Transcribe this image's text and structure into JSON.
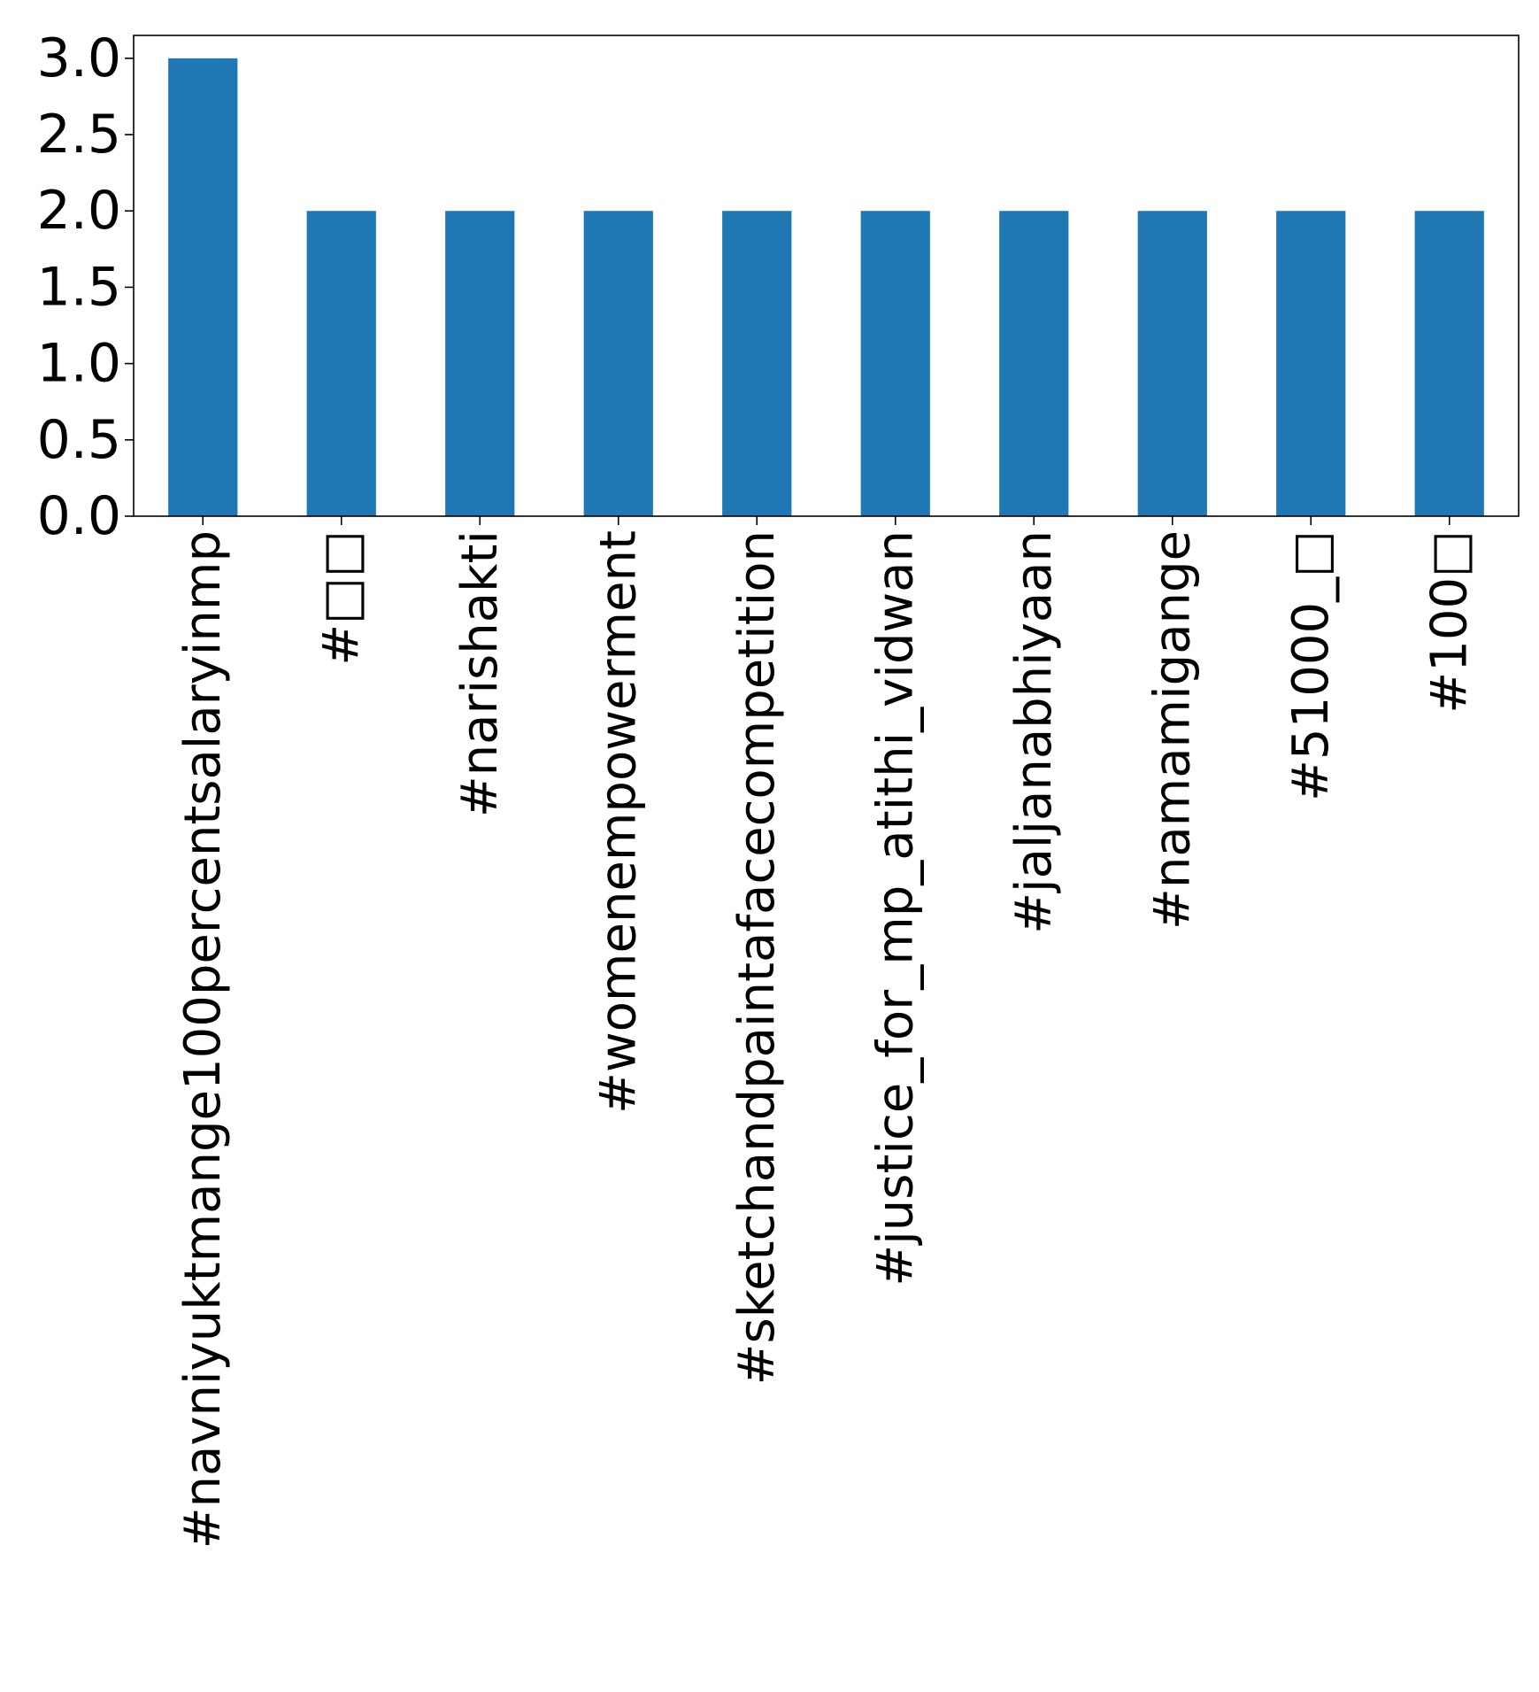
{
  "chart_data": {
    "type": "bar",
    "title": "",
    "xlabel": "",
    "ylabel": "",
    "categories": [
      "#navniyuktmange100percentsalaryinmp",
      "#□□",
      "#narishakti",
      "#womenempowerment",
      "#sketchandpaintafacecompetition",
      "#justice_for_mp_atithi_vidwan",
      "#jaljanabhiyaan",
      "#namamigange",
      "#51000_□",
      "#100□"
    ],
    "values": [
      3,
      2,
      2,
      2,
      2,
      2,
      2,
      2,
      2,
      2
    ],
    "ylim": [
      0,
      3.15
    ],
    "yticks": [
      "0.0",
      "0.5",
      "1.0",
      "1.5",
      "2.0",
      "2.5",
      "3.0"
    ],
    "grid": false,
    "legend": "none",
    "bar_color": "#1f77b4"
  }
}
